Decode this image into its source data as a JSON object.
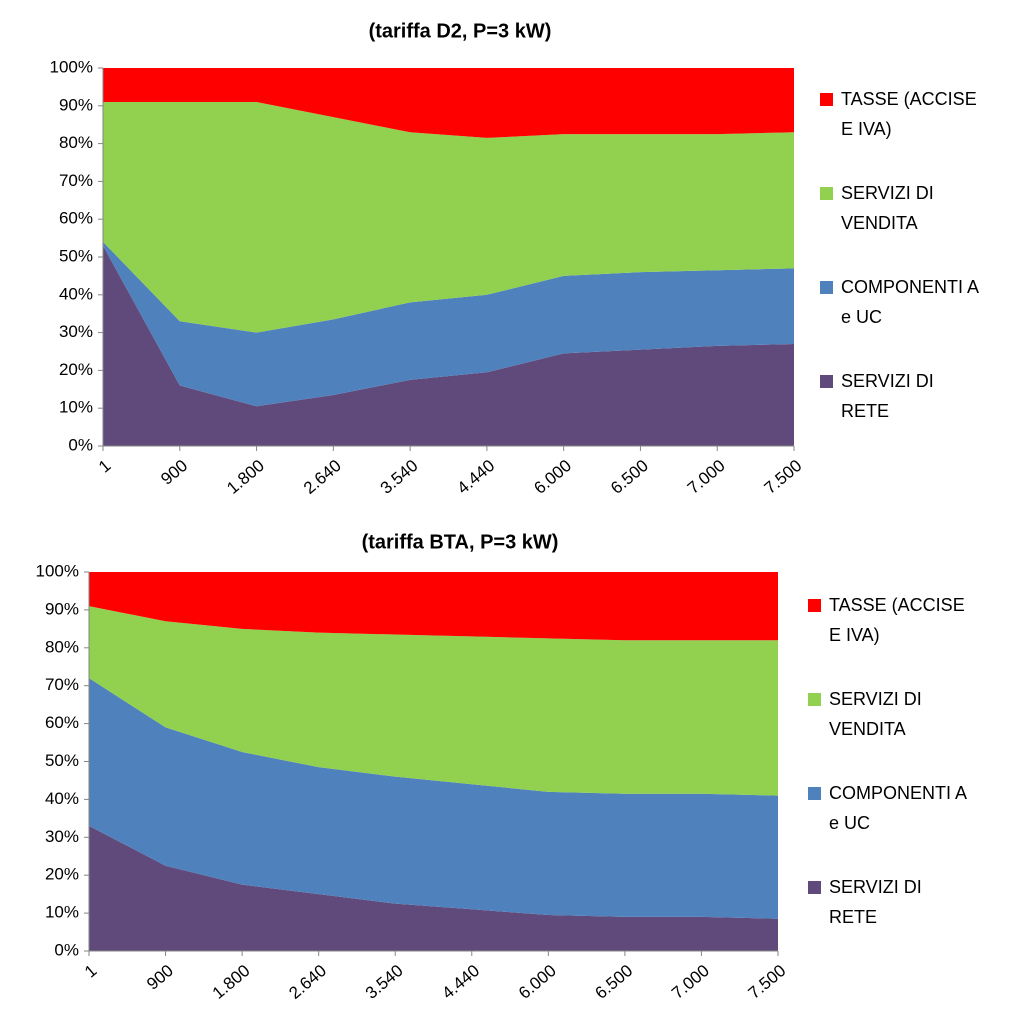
{
  "chart_data": [
    {
      "type": "area",
      "stacked": true,
      "title": "(tariffa D2, P=3 kW)",
      "categories": [
        "1",
        "900",
        "1.800",
        "2.640",
        "3.540",
        "4.440",
        "6.000",
        "6.500",
        "7.000",
        "7.500"
      ],
      "series": [
        {
          "name": "SERVIZI DI RETE",
          "color": "#604a7b",
          "values": [
            53,
            16,
            10.5,
            13.5,
            17.5,
            19.5,
            24.5,
            25.5,
            26.5,
            27
          ]
        },
        {
          "name": "COMPONENTI A e UC",
          "color": "#4f81bd",
          "values": [
            1,
            17,
            19.5,
            20,
            20.5,
            20.5,
            20.5,
            20.5,
            20,
            20
          ]
        },
        {
          "name": "SERVIZI DI VENDITA",
          "color": "#92d050",
          "values": [
            37,
            58,
            61,
            53.5,
            45,
            41.5,
            37.5,
            36.5,
            36,
            36
          ]
        },
        {
          "name": "TASSE (ACCISE E IVA)",
          "color": "#ff0000",
          "values": [
            9,
            9,
            9,
            13,
            17,
            18.5,
            17.5,
            17.5,
            17.5,
            17
          ]
        }
      ],
      "ylim": [
        0,
        100
      ],
      "yticks": [
        {
          "value": 0,
          "label": "0%"
        },
        {
          "value": 10,
          "label": "10%"
        },
        {
          "value": 20,
          "label": "20%"
        },
        {
          "value": 30,
          "label": "30%"
        },
        {
          "value": 40,
          "label": "40%"
        },
        {
          "value": 50,
          "label": "50%"
        },
        {
          "value": 60,
          "label": "60%"
        },
        {
          "value": 70,
          "label": "70%"
        },
        {
          "value": 80,
          "label": "80%"
        },
        {
          "value": 90,
          "label": "90%"
        },
        {
          "value": 100,
          "label": "100%"
        }
      ],
      "legend": "right"
    },
    {
      "type": "area",
      "stacked": true,
      "title": "(tariffa BTA, P=3 kW)",
      "categories": [
        "1",
        "900",
        "1.800",
        "2.640",
        "3.540",
        "4.440",
        "6.000",
        "6.500",
        "7.000",
        "7.500"
      ],
      "series": [
        {
          "name": "SERVIZI DI RETE",
          "color": "#604a7b",
          "values": [
            33,
            22.5,
            17.5,
            15,
            12.5,
            11,
            9.5,
            9,
            9,
            8.5
          ]
        },
        {
          "name": "COMPONENTI A e UC",
          "color": "#4f81bd",
          "values": [
            39,
            36.5,
            35,
            33.5,
            33.5,
            33,
            32.5,
            32.5,
            32.5,
            32.5
          ]
        },
        {
          "name": "SERVIZI DI VENDITA",
          "color": "#92d050",
          "values": [
            19,
            28,
            32.5,
            35.5,
            37.5,
            39,
            40.5,
            40.5,
            40.5,
            41
          ]
        },
        {
          "name": "TASSE (ACCISE E IVA)",
          "color": "#ff0000",
          "values": [
            9,
            13,
            15,
            16,
            16.5,
            17,
            17.5,
            18,
            18,
            18
          ]
        }
      ],
      "ylim": [
        0,
        100
      ],
      "yticks": [
        {
          "value": 0,
          "label": "0%"
        },
        {
          "value": 10,
          "label": "10%"
        },
        {
          "value": 20,
          "label": "20%"
        },
        {
          "value": 30,
          "label": "30%"
        },
        {
          "value": 40,
          "label": "40%"
        },
        {
          "value": 50,
          "label": "50%"
        },
        {
          "value": 60,
          "label": "60%"
        },
        {
          "value": 70,
          "label": "70%"
        },
        {
          "value": 80,
          "label": "80%"
        },
        {
          "value": 90,
          "label": "90%"
        },
        {
          "value": 100,
          "label": "100%"
        }
      ],
      "legend": "right"
    }
  ]
}
